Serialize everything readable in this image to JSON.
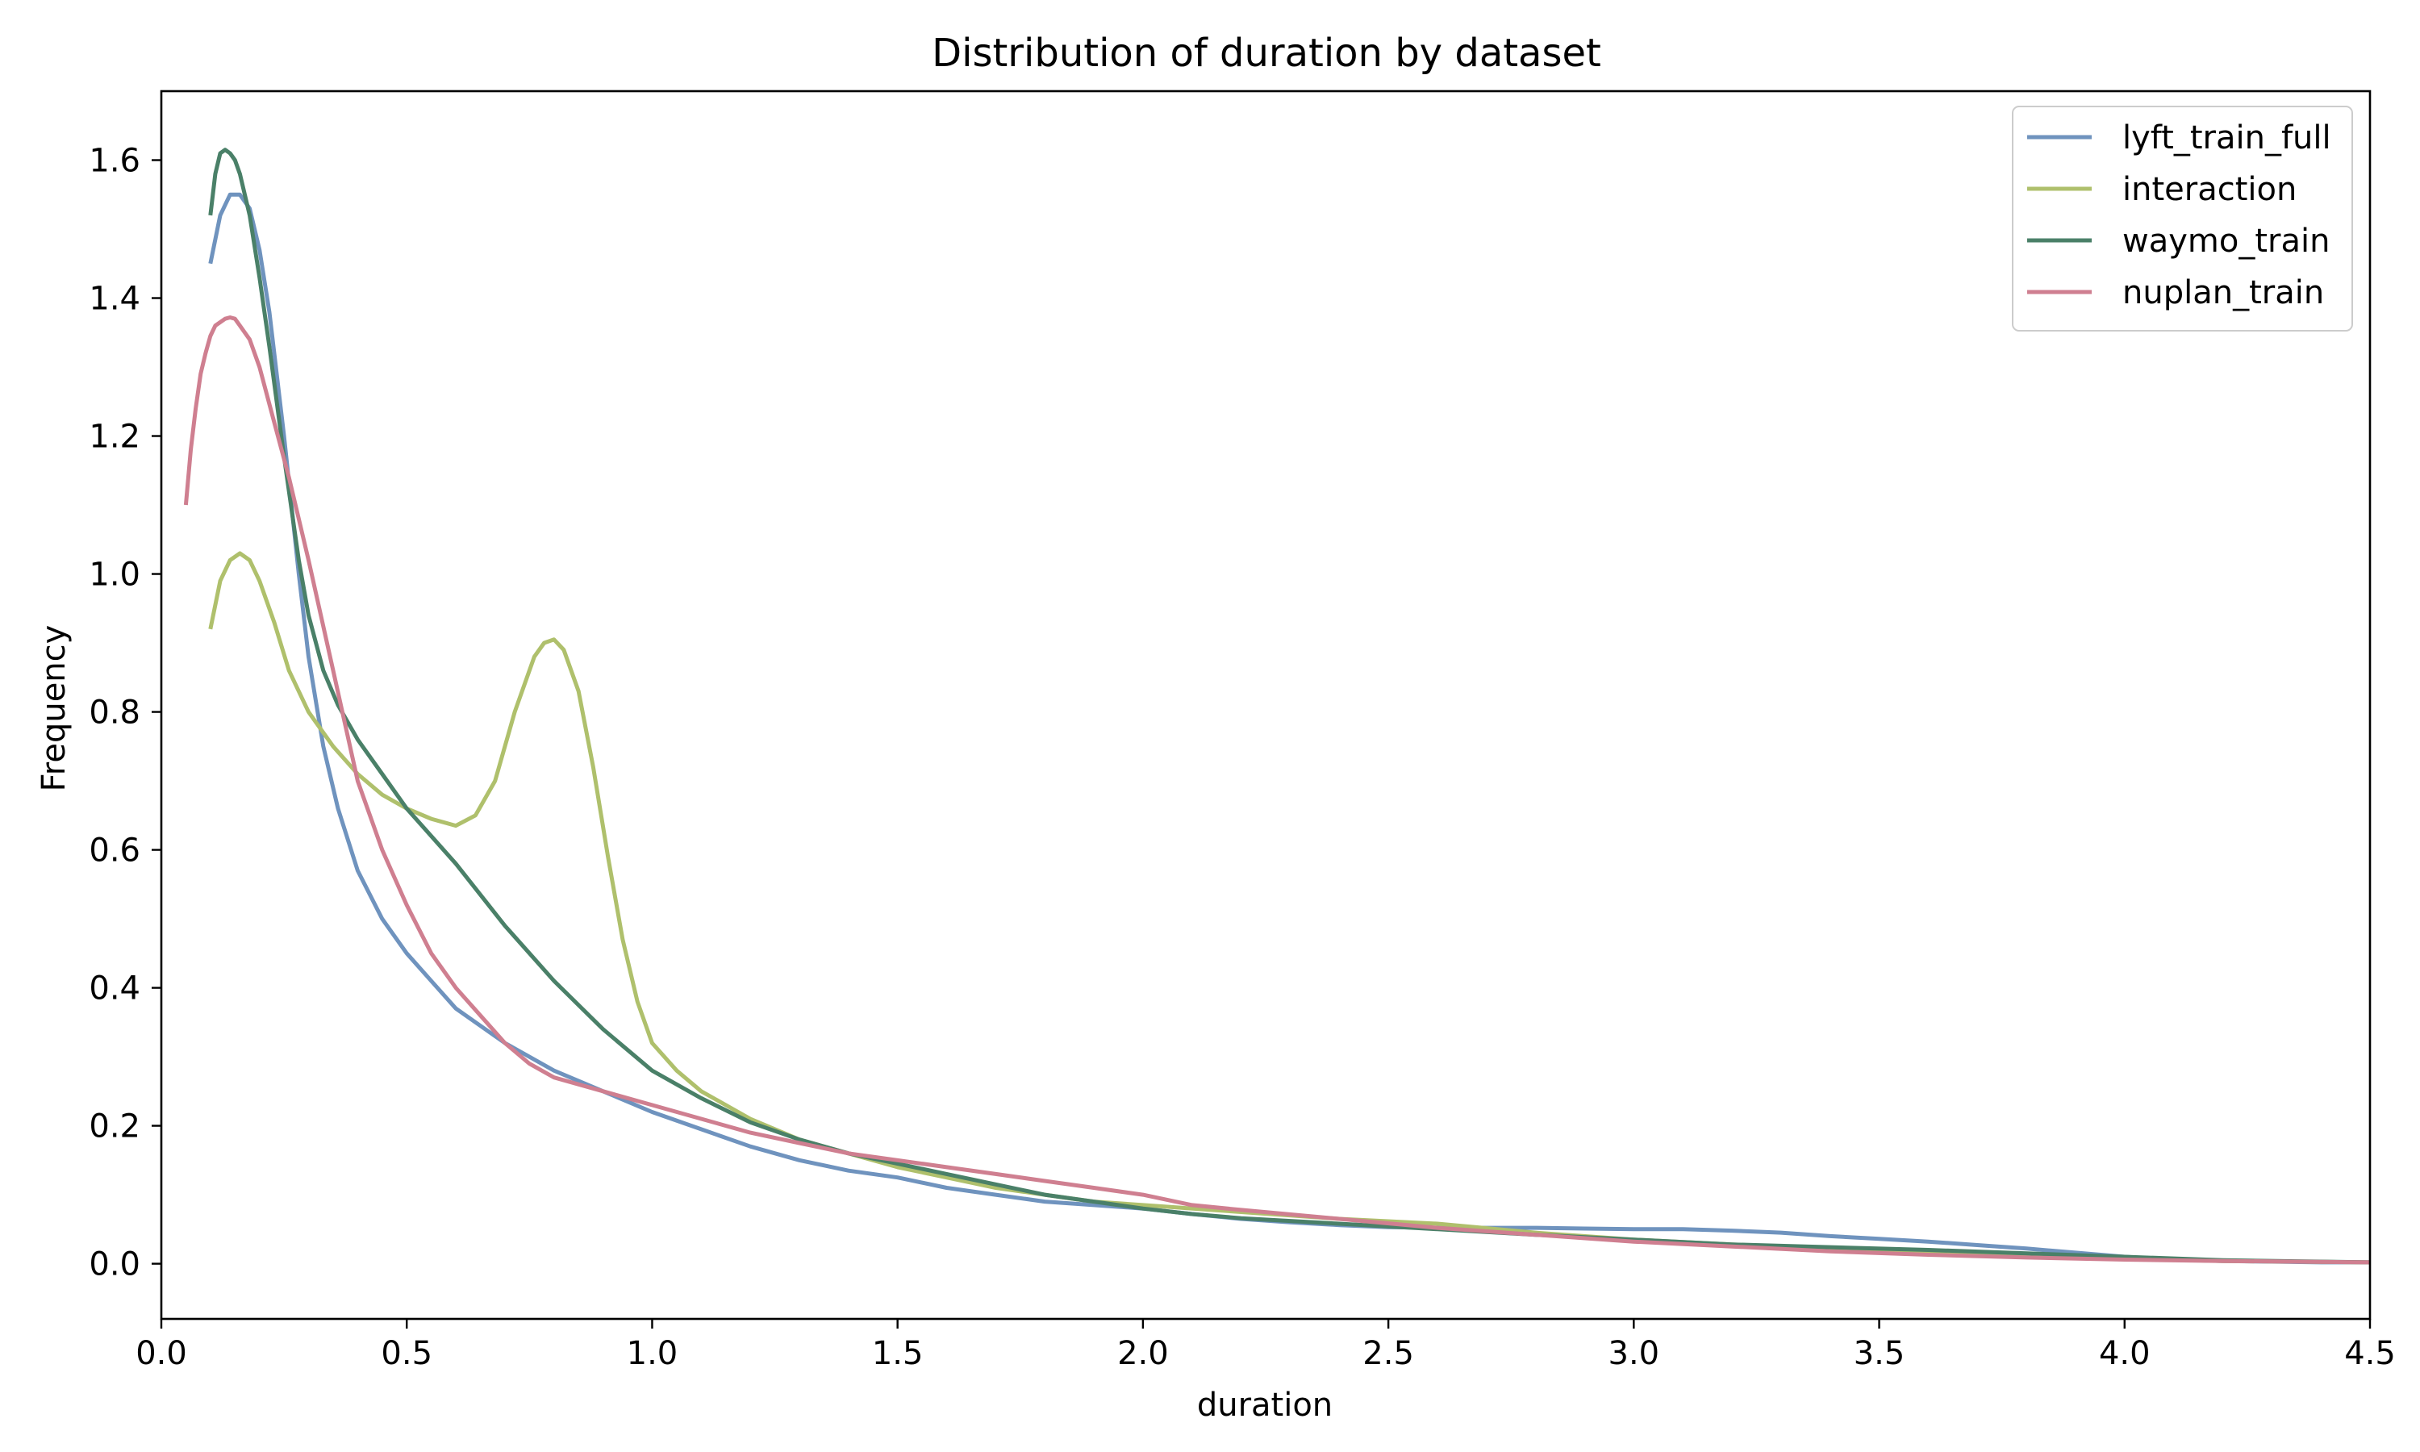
{
  "chart_data": {
    "type": "line",
    "title": "Distribution of duration by dataset",
    "xlabel": "duration",
    "ylabel": "Frequency",
    "xlim": [
      0.0,
      4.5
    ],
    "ylim": [
      -0.08,
      1.7
    ],
    "xticks": [
      0.0,
      0.5,
      1.0,
      1.5,
      2.0,
      2.5,
      3.0,
      3.5,
      4.0,
      4.5
    ],
    "xtick_labels": [
      "0.0",
      "0.5",
      "1.0",
      "1.5",
      "2.0",
      "2.5",
      "3.0",
      "3.5",
      "4.0",
      "4.5"
    ],
    "yticks": [
      0.0,
      0.2,
      0.4,
      0.6,
      0.8,
      1.0,
      1.2,
      1.4,
      1.6
    ],
    "ytick_labels": [
      "0.0",
      "0.2",
      "0.4",
      "0.6",
      "0.8",
      "1.0",
      "1.2",
      "1.4",
      "1.6"
    ],
    "grid": false,
    "legend_position": "top-right",
    "series": [
      {
        "name": "lyft_train_full",
        "color": "#6f93be",
        "x": [
          0.1,
          0.12,
          0.14,
          0.16,
          0.18,
          0.2,
          0.22,
          0.25,
          0.28,
          0.3,
          0.33,
          0.36,
          0.4,
          0.45,
          0.5,
          0.55,
          0.6,
          0.7,
          0.8,
          0.9,
          1.0,
          1.1,
          1.2,
          1.3,
          1.4,
          1.5,
          1.6,
          1.7,
          1.8,
          1.9,
          2.0,
          2.1,
          2.2,
          2.3,
          2.4,
          2.5,
          2.6,
          2.7,
          2.8,
          2.9,
          3.0,
          3.1,
          3.2,
          3.3,
          3.4,
          3.5,
          3.6,
          3.7,
          3.8,
          3.9,
          4.0,
          4.1,
          4.2,
          4.3,
          4.4,
          4.5
        ],
        "y": [
          1.45,
          1.52,
          1.55,
          1.55,
          1.53,
          1.47,
          1.38,
          1.2,
          1.0,
          0.88,
          0.75,
          0.66,
          0.57,
          0.5,
          0.45,
          0.41,
          0.37,
          0.32,
          0.28,
          0.25,
          0.22,
          0.195,
          0.17,
          0.15,
          0.135,
          0.125,
          0.11,
          0.1,
          0.09,
          0.085,
          0.08,
          0.072,
          0.065,
          0.06,
          0.056,
          0.053,
          0.052,
          0.052,
          0.052,
          0.051,
          0.05,
          0.05,
          0.048,
          0.045,
          0.04,
          0.036,
          0.032,
          0.027,
          0.022,
          0.016,
          0.01,
          0.006,
          0.004,
          0.003,
          0.002,
          0.002
        ]
      },
      {
        "name": "interaction",
        "color": "#afc06c",
        "x": [
          0.1,
          0.12,
          0.14,
          0.16,
          0.18,
          0.2,
          0.23,
          0.26,
          0.3,
          0.35,
          0.4,
          0.45,
          0.5,
          0.55,
          0.6,
          0.64,
          0.68,
          0.72,
          0.76,
          0.78,
          0.8,
          0.82,
          0.85,
          0.88,
          0.91,
          0.94,
          0.97,
          1.0,
          1.05,
          1.1,
          1.2,
          1.3,
          1.4,
          1.5,
          1.6,
          1.7,
          1.8,
          1.9,
          2.0,
          2.2,
          2.4,
          2.6,
          2.8,
          3.0,
          3.2,
          3.4,
          3.6,
          3.8,
          4.0,
          4.2,
          4.5
        ],
        "y": [
          0.92,
          0.99,
          1.02,
          1.03,
          1.02,
          0.99,
          0.93,
          0.86,
          0.8,
          0.75,
          0.71,
          0.68,
          0.66,
          0.645,
          0.635,
          0.65,
          0.7,
          0.8,
          0.88,
          0.9,
          0.905,
          0.89,
          0.83,
          0.72,
          0.59,
          0.47,
          0.38,
          0.32,
          0.28,
          0.25,
          0.21,
          0.18,
          0.16,
          0.14,
          0.125,
          0.11,
          0.1,
          0.09,
          0.085,
          0.075,
          0.065,
          0.058,
          0.045,
          0.035,
          0.028,
          0.022,
          0.017,
          0.012,
          0.008,
          0.004,
          0.002
        ]
      },
      {
        "name": "waymo_train",
        "color": "#4a8068",
        "x": [
          0.1,
          0.11,
          0.12,
          0.13,
          0.14,
          0.15,
          0.16,
          0.18,
          0.2,
          0.22,
          0.25,
          0.28,
          0.3,
          0.33,
          0.36,
          0.4,
          0.45,
          0.5,
          0.6,
          0.7,
          0.8,
          0.9,
          1.0,
          1.1,
          1.2,
          1.3,
          1.4,
          1.5,
          1.6,
          1.7,
          1.8,
          1.9,
          2.0,
          2.1,
          2.2,
          2.4,
          2.6,
          2.8,
          3.0,
          3.2,
          3.4,
          3.6,
          3.8,
          4.0,
          4.2,
          4.5
        ],
        "y": [
          1.52,
          1.58,
          1.61,
          1.615,
          1.61,
          1.6,
          1.58,
          1.52,
          1.43,
          1.33,
          1.17,
          1.02,
          0.94,
          0.86,
          0.81,
          0.76,
          0.71,
          0.66,
          0.58,
          0.49,
          0.41,
          0.34,
          0.28,
          0.24,
          0.205,
          0.18,
          0.16,
          0.145,
          0.13,
          0.115,
          0.1,
          0.09,
          0.08,
          0.072,
          0.066,
          0.058,
          0.05,
          0.042,
          0.035,
          0.028,
          0.024,
          0.02,
          0.015,
          0.01,
          0.005,
          0.002
        ]
      },
      {
        "name": "nuplan_train",
        "color": "#cf7f90",
        "x": [
          0.05,
          0.06,
          0.07,
          0.08,
          0.09,
          0.1,
          0.11,
          0.12,
          0.13,
          0.14,
          0.15,
          0.16,
          0.18,
          0.2,
          0.23,
          0.26,
          0.3,
          0.35,
          0.4,
          0.45,
          0.5,
          0.55,
          0.6,
          0.65,
          0.7,
          0.75,
          0.8,
          0.9,
          1.0,
          1.1,
          1.2,
          1.3,
          1.4,
          1.5,
          1.6,
          1.7,
          1.8,
          1.9,
          2.0,
          2.1,
          2.2,
          2.4,
          2.6,
          2.8,
          3.0,
          3.2,
          3.4,
          3.6,
          3.8,
          4.0,
          4.2,
          4.5
        ],
        "y": [
          1.1,
          1.18,
          1.24,
          1.29,
          1.32,
          1.345,
          1.36,
          1.365,
          1.37,
          1.372,
          1.37,
          1.36,
          1.34,
          1.3,
          1.22,
          1.14,
          1.02,
          0.86,
          0.7,
          0.6,
          0.52,
          0.45,
          0.4,
          0.36,
          0.32,
          0.29,
          0.27,
          0.25,
          0.23,
          0.21,
          0.19,
          0.175,
          0.16,
          0.15,
          0.14,
          0.13,
          0.12,
          0.11,
          0.1,
          0.085,
          0.078,
          0.065,
          0.052,
          0.042,
          0.032,
          0.025,
          0.018,
          0.013,
          0.009,
          0.006,
          0.004,
          0.002
        ]
      }
    ]
  }
}
